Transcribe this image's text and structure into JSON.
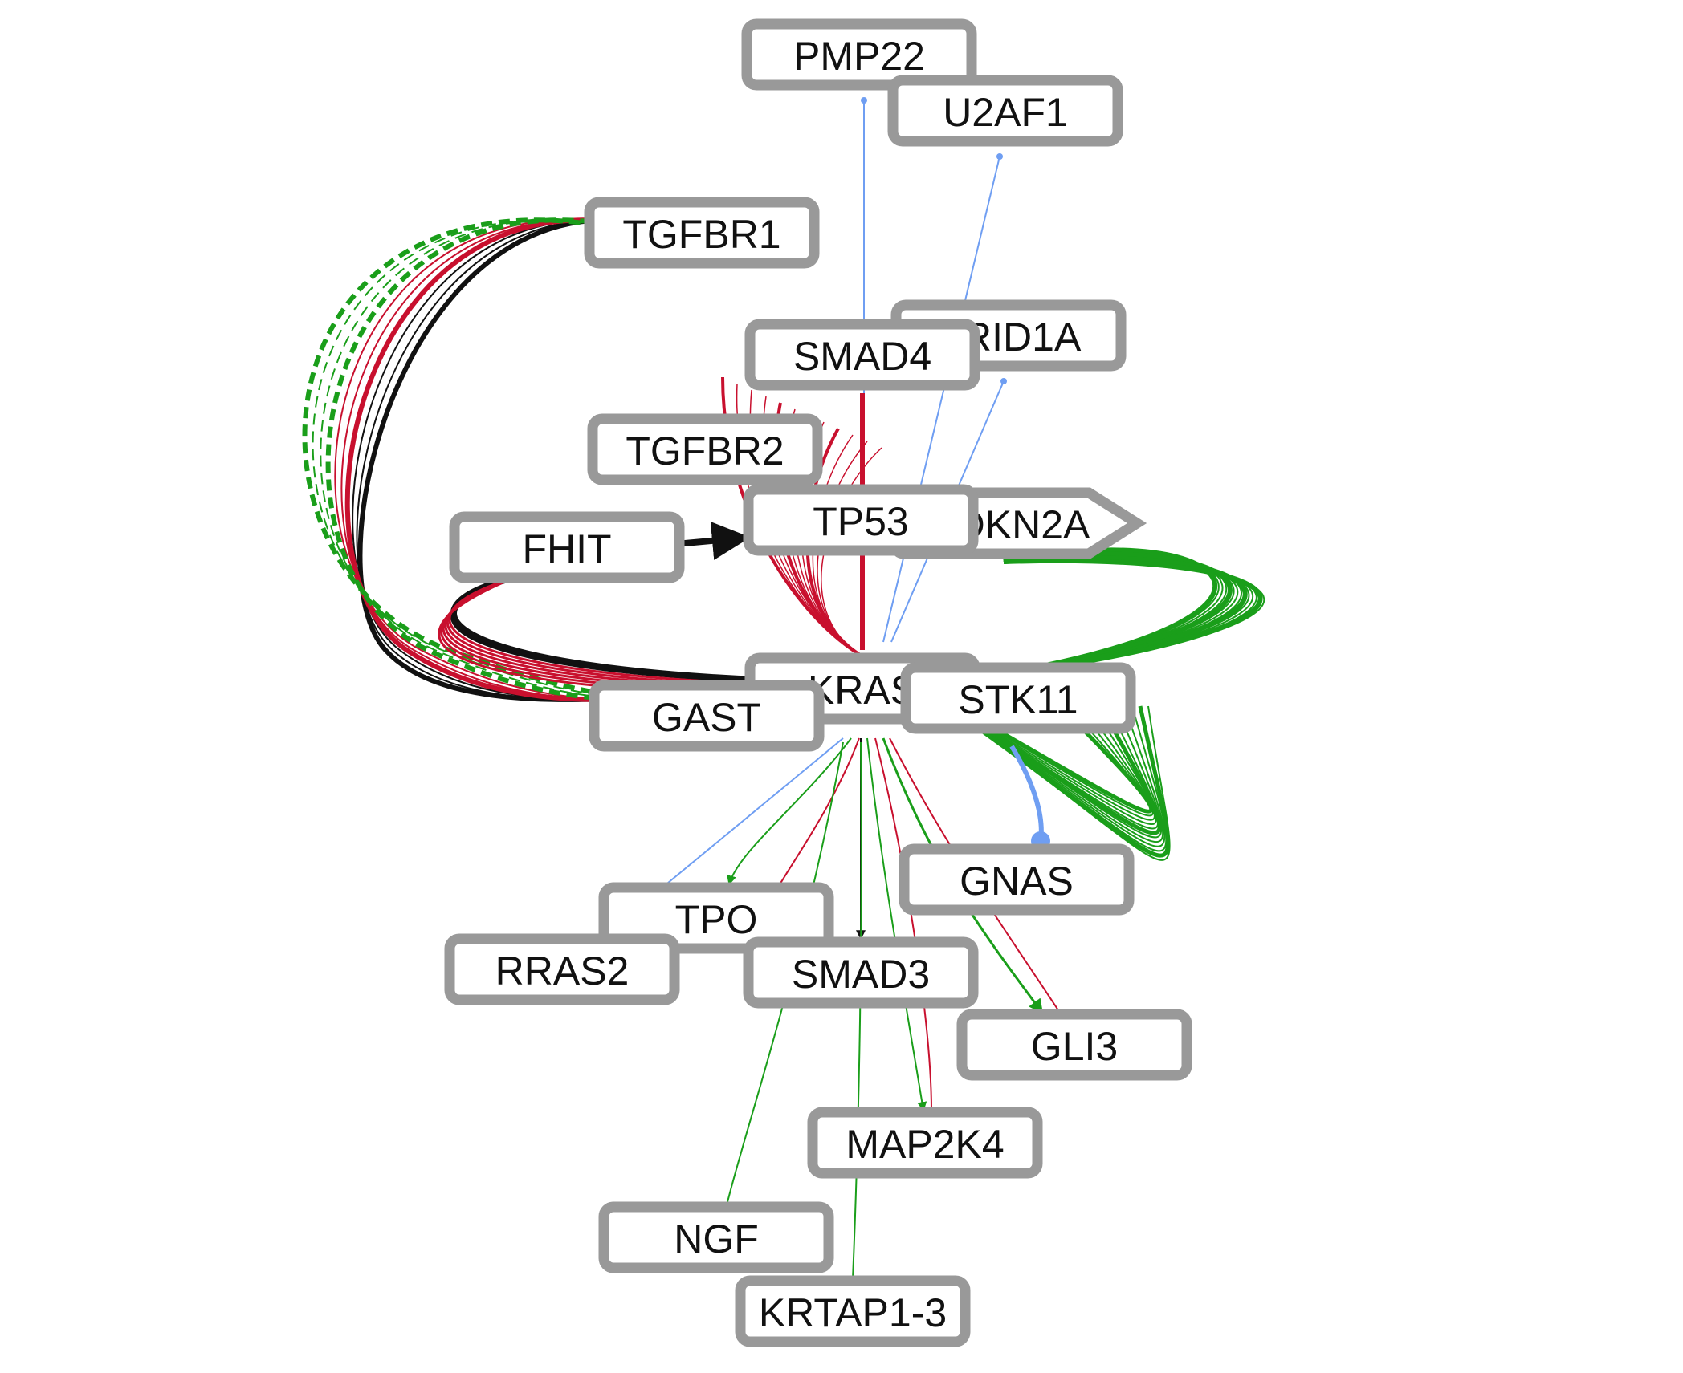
{
  "colors": {
    "activation": "#1a9e1a",
    "inhibition": "#c8102e",
    "binding": "#6f9ef2",
    "neutral": "#111111",
    "node_border": "#999999"
  },
  "nodes": [
    {
      "id": "PMP22",
      "label": "PMP22",
      "shape": "rect"
    },
    {
      "id": "U2AF1",
      "label": "U2AF1",
      "shape": "rect"
    },
    {
      "id": "TGFBR1",
      "label": "TGFBR1",
      "shape": "rect"
    },
    {
      "id": "ARID1A",
      "label": "ARID1A",
      "shape": "rect"
    },
    {
      "id": "SMAD4",
      "label": "SMAD4",
      "shape": "rect"
    },
    {
      "id": "TGFBR2",
      "label": "TGFBR2",
      "shape": "rect"
    },
    {
      "id": "CDKN2A",
      "label": "CDKN2A",
      "shape": "arrow"
    },
    {
      "id": "TP53",
      "label": "TP53",
      "shape": "rect"
    },
    {
      "id": "FHIT",
      "label": "FHIT",
      "shape": "rect"
    },
    {
      "id": "KRAS",
      "label": "KRAS",
      "shape": "rect"
    },
    {
      "id": "GAST",
      "label": "GAST",
      "shape": "rect"
    },
    {
      "id": "STK11",
      "label": "STK11",
      "shape": "rect"
    },
    {
      "id": "GNAS",
      "label": "GNAS",
      "shape": "rect"
    },
    {
      "id": "TPO",
      "label": "TPO",
      "shape": "rect"
    },
    {
      "id": "RRAS2",
      "label": "RRAS2",
      "shape": "rect"
    },
    {
      "id": "SMAD3",
      "label": "SMAD3",
      "shape": "rect"
    },
    {
      "id": "GLI3",
      "label": "GLI3",
      "shape": "rect"
    },
    {
      "id": "MAP2K4",
      "label": "MAP2K4",
      "shape": "rect"
    },
    {
      "id": "NGF",
      "label": "NGF",
      "shape": "rect"
    },
    {
      "id": "KRTAP1-3",
      "label": "KRTAP1-3",
      "shape": "rect"
    }
  ],
  "edges": [
    {
      "source": "PMP22",
      "target": "KRAS",
      "type": "binding"
    },
    {
      "source": "U2AF1",
      "target": "KRAS",
      "type": "binding"
    },
    {
      "source": "ARID1A",
      "target": "KRAS",
      "type": "binding"
    },
    {
      "source": "TGFBR1",
      "target": "KRAS",
      "type": "inhibition"
    },
    {
      "source": "TGFBR1",
      "target": "KRAS",
      "type": "activation-dashed"
    },
    {
      "source": "TGFBR1",
      "target": "FHIT",
      "type": "neutral"
    },
    {
      "source": "TGFBR2",
      "target": "KRAS",
      "type": "inhibition"
    },
    {
      "source": "SMAD4",
      "target": "KRAS",
      "type": "inhibition"
    },
    {
      "source": "SMAD4",
      "target": "CDKN2A",
      "type": "activation"
    },
    {
      "source": "FHIT",
      "target": "TP53",
      "type": "neutral"
    },
    {
      "source": "FHIT",
      "target": "KRAS",
      "type": "inhibition"
    },
    {
      "source": "CDKN2A",
      "target": "KRAS",
      "type": "activation"
    },
    {
      "source": "STK11",
      "target": "CDKN2A",
      "type": "activation"
    },
    {
      "source": "STK11",
      "target": "GNAS",
      "type": "binding"
    },
    {
      "source": "GNAS",
      "target": "KRAS",
      "type": "activation"
    },
    {
      "source": "KRAS",
      "target": "TPO",
      "type": "activation"
    },
    {
      "source": "KRAS",
      "target": "TPO",
      "type": "inhibition"
    },
    {
      "source": "KRAS",
      "target": "SMAD3",
      "type": "neutral"
    },
    {
      "source": "KRAS",
      "target": "GLI3",
      "type": "activation"
    },
    {
      "source": "KRAS",
      "target": "GLI3",
      "type": "inhibition"
    },
    {
      "source": "KRAS",
      "target": "MAP2K4",
      "type": "activation"
    },
    {
      "source": "RRAS2",
      "target": "KRAS",
      "type": "binding"
    },
    {
      "source": "NGF",
      "target": "KRAS",
      "type": "activation"
    },
    {
      "source": "KRTAP1-3",
      "target": "KRAS",
      "type": "activation"
    },
    {
      "source": "MAP2K4",
      "target": "KRAS",
      "type": "inhibition"
    }
  ]
}
